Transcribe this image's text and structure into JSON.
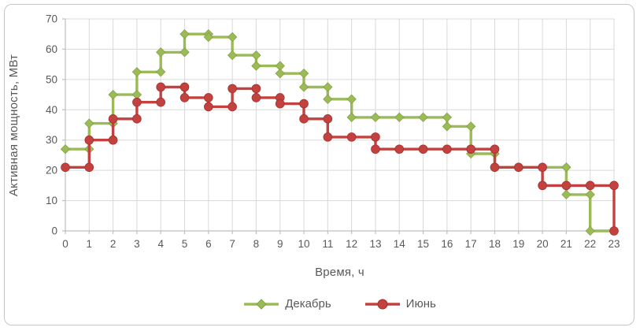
{
  "frame": {
    "background": "#ffffff",
    "border_color": "#c6c6c6",
    "gridline_color": "#d9d9d9",
    "axis_line_color": "#bfbfbf",
    "text_color": "#595959"
  },
  "chart_data": {
    "type": "line",
    "subtype": "step-post-with-markers",
    "title": "",
    "xlabel": "Время, ч",
    "ylabel": "Активная мощность, МВт",
    "xlim": [
      0,
      23
    ],
    "ylim": [
      0,
      70
    ],
    "x_ticks": [
      0,
      1,
      2,
      3,
      4,
      5,
      6,
      7,
      8,
      9,
      10,
      11,
      12,
      13,
      14,
      15,
      16,
      17,
      18,
      19,
      20,
      21,
      22,
      23
    ],
    "y_ticks": [
      0,
      10,
      20,
      30,
      40,
      50,
      60,
      70
    ],
    "grid": true,
    "legend_position": "bottom",
    "values_note": "values[i] = power level (МВт) on hour interval [i, i+1]; final entry = level at hour 23 after last step",
    "series": [
      {
        "name": "Декабрь",
        "color": "#9bbb59",
        "marker": "diamond",
        "values": [
          27,
          35.5,
          45,
          52.5,
          59,
          65,
          64,
          58,
          54.5,
          52,
          47.5,
          43.5,
          37.5,
          37.5,
          37.5,
          37.5,
          34.5,
          25.5,
          21,
          21,
          21,
          12,
          0,
          0
        ]
      },
      {
        "name": "Июнь",
        "color": "#c3423f",
        "marker": "circle",
        "values": [
          21,
          30,
          37,
          42.5,
          47.5,
          44,
          41,
          47,
          44,
          42,
          37,
          31,
          31,
          27,
          27,
          27,
          27,
          27,
          21,
          21,
          15,
          15,
          15,
          0
        ]
      }
    ]
  }
}
